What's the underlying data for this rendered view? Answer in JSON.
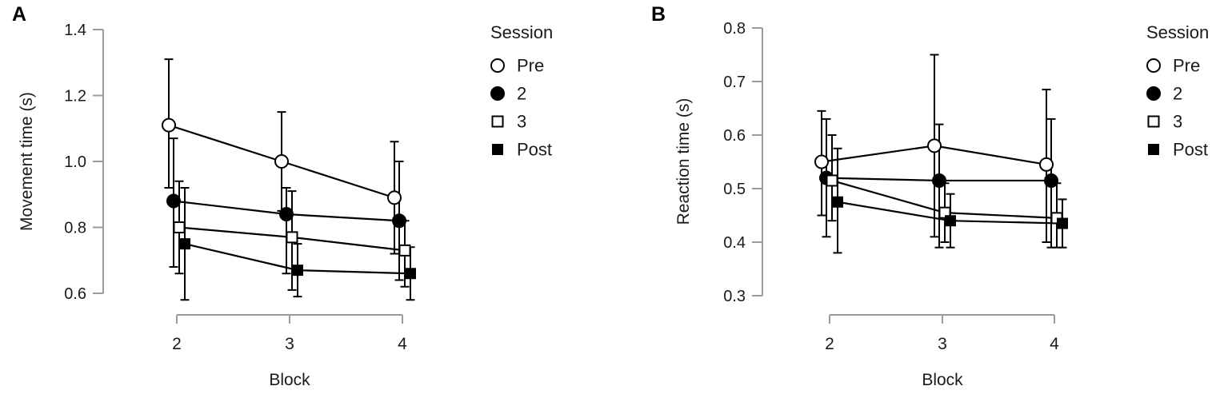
{
  "colors": {
    "axis": "#9b9b9b",
    "data": "#000000",
    "text": "#1a1a1a",
    "background": "#ffffff"
  },
  "chart_data": [
    {
      "type": "line",
      "panel_label": "A",
      "xlabel": "Block",
      "ylabel": "Movement time (s)",
      "x": [
        2,
        3,
        4
      ],
      "xtick_labels": [
        "2",
        "3",
        "4"
      ],
      "ylim": [
        0.6,
        1.4
      ],
      "yticks": [
        0.6,
        0.8,
        1.0,
        1.2,
        1.4
      ],
      "ytick_labels": [
        "0.6",
        "0.8",
        "1.0",
        "1.2",
        "1.4"
      ],
      "grid": false,
      "legend_position": "right",
      "legend_title": "Session",
      "series": [
        {
          "name": "Pre",
          "marker": "open-circle",
          "values": [
            1.11,
            1.0,
            0.89
          ],
          "err_lo": [
            0.92,
            0.85,
            0.72
          ],
          "err_hi": [
            1.31,
            1.15,
            1.06
          ]
        },
        {
          "name": "2",
          "marker": "filled-circle",
          "values": [
            0.88,
            0.84,
            0.82
          ],
          "err_lo": [
            0.68,
            0.66,
            0.64
          ],
          "err_hi": [
            1.07,
            0.92,
            1.0
          ]
        },
        {
          "name": "3",
          "marker": "open-square",
          "values": [
            0.8,
            0.77,
            0.73
          ],
          "err_lo": [
            0.66,
            0.61,
            0.62
          ],
          "err_hi": [
            0.94,
            0.91,
            0.82
          ]
        },
        {
          "name": "Post",
          "marker": "filled-square",
          "values": [
            0.75,
            0.67,
            0.66
          ],
          "err_lo": [
            0.58,
            0.59,
            0.58
          ],
          "err_hi": [
            0.92,
            0.75,
            0.74
          ]
        }
      ]
    },
    {
      "type": "line",
      "panel_label": "B",
      "xlabel": "Block",
      "ylabel": "Reaction time (s)",
      "x": [
        2,
        3,
        4
      ],
      "xtick_labels": [
        "2",
        "3",
        "4"
      ],
      "ylim": [
        0.3,
        0.8
      ],
      "yticks": [
        0.3,
        0.4,
        0.5,
        0.6,
        0.7,
        0.8
      ],
      "ytick_labels": [
        "0.3",
        "0.4",
        "0.5",
        "0.6",
        "0.7",
        "0.8"
      ],
      "grid": false,
      "legend_position": "right",
      "legend_title": "Session",
      "series": [
        {
          "name": "Pre",
          "marker": "open-circle",
          "values": [
            0.55,
            0.58,
            0.545
          ],
          "err_lo": [
            0.45,
            0.41,
            0.4
          ],
          "err_hi": [
            0.645,
            0.75,
            0.685
          ]
        },
        {
          "name": "2",
          "marker": "filled-circle",
          "values": [
            0.52,
            0.515,
            0.515
          ],
          "err_lo": [
            0.41,
            0.39,
            0.39
          ],
          "err_hi": [
            0.63,
            0.62,
            0.63
          ]
        },
        {
          "name": "3",
          "marker": "open-square",
          "values": [
            0.515,
            0.455,
            0.445
          ],
          "err_lo": [
            0.44,
            0.4,
            0.39
          ],
          "err_hi": [
            0.6,
            0.51,
            0.51
          ]
        },
        {
          "name": "Post",
          "marker": "filled-square",
          "values": [
            0.475,
            0.44,
            0.435
          ],
          "err_lo": [
            0.38,
            0.39,
            0.39
          ],
          "err_hi": [
            0.575,
            0.49,
            0.48
          ]
        }
      ]
    }
  ]
}
